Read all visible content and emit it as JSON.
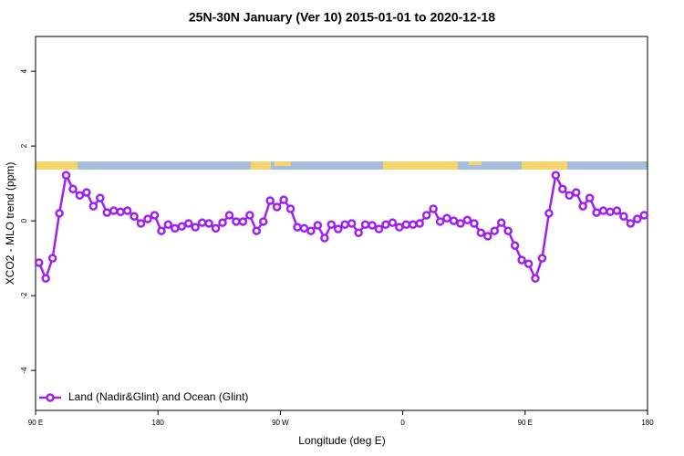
{
  "chart_data": {
    "type": "line",
    "title": "25N-30N January (Ver 10)   2015-01-01 to 2020-12-18",
    "xlabel": "Longitude (deg E)",
    "ylabel": "XCO2 - MLO trend (ppm)",
    "x": [
      92.5,
      97.5,
      102.5,
      107.5,
      112.5,
      117.5,
      122.5,
      127.5,
      132.5,
      137.5,
      142.5,
      147.5,
      152.5,
      157.5,
      162.5,
      167.5,
      172.5,
      177.5,
      182.5,
      187.5,
      192.5,
      197.5,
      202.5,
      207.5,
      212.5,
      217.5,
      222.5,
      227.5,
      232.5,
      237.5,
      242.5,
      247.5,
      252.5,
      257.5,
      262.5,
      267.5,
      272.5,
      277.5,
      282.5,
      287.5,
      292.5,
      297.5,
      302.5,
      307.5,
      312.5,
      317.5,
      322.5,
      327.5,
      332.5,
      337.5,
      342.5,
      347.5,
      352.5,
      357.5,
      362.5,
      367.5,
      372.5,
      377.5,
      382.5,
      387.5,
      392.5,
      397.5,
      402.5,
      407.5,
      412.5,
      417.5,
      422.5,
      427.5,
      432.5,
      437.5,
      442.5,
      447.5,
      452.5,
      457.5,
      462.5,
      467.5,
      472.5,
      477.5,
      482.5,
      487.5,
      492.5,
      497.5,
      502.5,
      507.5,
      512.5,
      517.5,
      522.5,
      527.5,
      532.5,
      537.5
    ],
    "series": [
      {
        "name": "Land (Nadir&Glint) and Ocean (Glint)",
        "color": "#a020f0",
        "values": [
          -1.12,
          -1.54,
          -1.0,
          0.2,
          1.22,
          0.85,
          0.68,
          0.76,
          0.39,
          0.61,
          0.22,
          0.27,
          0.24,
          0.27,
          0.12,
          -0.07,
          0.05,
          0.15,
          -0.27,
          -0.1,
          -0.2,
          -0.15,
          -0.07,
          -0.17,
          -0.05,
          -0.07,
          -0.2,
          -0.05,
          0.15,
          -0.02,
          -0.02,
          0.15,
          -0.27,
          -0.02,
          0.54,
          0.37,
          0.56,
          0.32,
          -0.17,
          -0.2,
          -0.27,
          -0.12,
          -0.46,
          -0.1,
          -0.22,
          -0.1,
          -0.07,
          -0.32,
          -0.1,
          -0.12,
          -0.22,
          -0.1,
          -0.05,
          -0.17,
          -0.1,
          -0.1,
          -0.07,
          0.15,
          0.32,
          -0.02,
          0.07,
          0.0,
          -0.07,
          0.02,
          -0.07,
          -0.32,
          -0.41,
          -0.27,
          -0.05,
          -0.27,
          -0.66,
          -1.05,
          -1.15,
          -1.54,
          -1.0,
          0.2,
          1.22,
          0.85,
          0.68,
          0.76,
          0.39,
          0.61,
          0.22,
          0.27,
          0.24,
          0.27,
          0.12,
          -0.07,
          0.05,
          0.15
        ]
      }
    ],
    "xlim": [
      90,
      540
    ],
    "xticks": [
      {
        "value": 90,
        "label": "90 E"
      },
      180,
      {
        "value": 270,
        "label": "90 W"
      },
      {
        "value": 360,
        "label": "0"
      },
      {
        "value": 450,
        "label": "90 E"
      },
      {
        "value": 540,
        "label": "180"
      }
    ],
    "ylim": [
      -5.07,
      4.93
    ],
    "yticks": [
      -4,
      -2,
      0,
      2,
      4
    ],
    "legend": "bottom-left"
  }
}
